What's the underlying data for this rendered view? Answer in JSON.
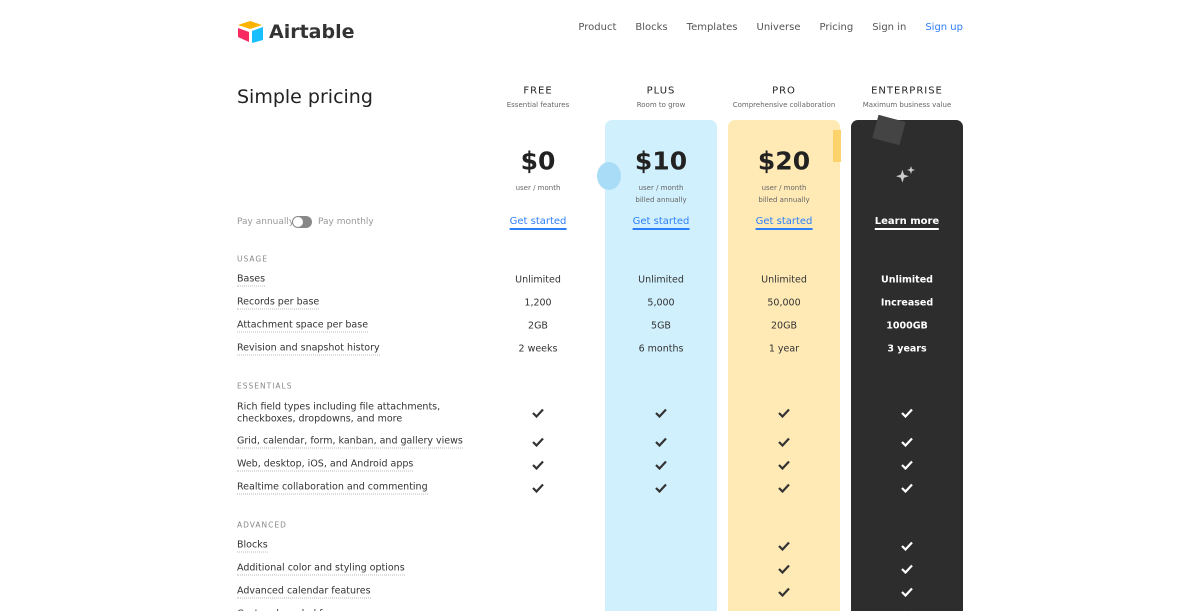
{
  "header": {
    "logo": "Airtable",
    "nav": [
      "Product",
      "Blocks",
      "Templates",
      "Universe",
      "Pricing",
      "Sign in",
      "Sign up"
    ]
  },
  "title": "Simple pricing",
  "toggle": {
    "left": "Pay annually",
    "right": "Pay monthly"
  },
  "plans": [
    {
      "name": "FREE",
      "subtitle": "Essential features",
      "price": "$0",
      "unit": "user / month",
      "cta": "Get started"
    },
    {
      "name": "PLUS",
      "subtitle": "Room to grow",
      "price": "$10",
      "unit": "user / month",
      "billing": "billed annually",
      "cta": "Get started"
    },
    {
      "name": "PRO",
      "subtitle": "Comprehensive collaboration",
      "price": "$20",
      "unit": "user / month",
      "billing": "billed annually",
      "cta": "Get started"
    },
    {
      "name": "ENTERPRISE",
      "subtitle": "Maximum business value",
      "cta": "Learn more"
    }
  ],
  "sections": [
    {
      "title": "USAGE",
      "rows": [
        {
          "label": "Bases",
          "cells": [
            "Unlimited",
            "Unlimited",
            "Unlimited",
            "Unlimited"
          ]
        },
        {
          "label": "Records per base",
          "cells": [
            "1,200",
            "5,000",
            "50,000",
            "Increased"
          ]
        },
        {
          "label": "Attachment space per base",
          "cells": [
            "2GB",
            "5GB",
            "20GB",
            "1000GB"
          ]
        },
        {
          "label": "Revision and snapshot history",
          "cells": [
            "2 weeks",
            "6 months",
            "1 year",
            "3 years"
          ]
        }
      ]
    },
    {
      "title": "ESSENTIALS",
      "rows": [
        {
          "label": [
            "Rich field types including file attachments,",
            "checkboxes, dropdowns, and more"
          ],
          "cells": [
            true,
            true,
            true,
            true
          ]
        },
        {
          "label": "Grid, calendar, form, kanban, and gallery views",
          "cells": [
            true,
            true,
            true,
            true
          ]
        },
        {
          "label": "Web, desktop, iOS, and Android apps",
          "cells": [
            true,
            true,
            true,
            true
          ]
        },
        {
          "label": "Realtime collaboration and commenting",
          "cells": [
            true,
            true,
            true,
            true
          ]
        }
      ]
    },
    {
      "title": "ADVANCED",
      "rows": [
        {
          "label": "Blocks",
          "cells": [
            false,
            false,
            true,
            true
          ]
        },
        {
          "label": "Additional color and styling options",
          "cells": [
            false,
            false,
            true,
            true
          ]
        },
        {
          "label": "Advanced calendar features",
          "cells": [
            false,
            false,
            true,
            true
          ]
        },
        {
          "label": "Custom branded forms",
          "cells": [
            false,
            false,
            true,
            true
          ]
        }
      ]
    }
  ]
}
